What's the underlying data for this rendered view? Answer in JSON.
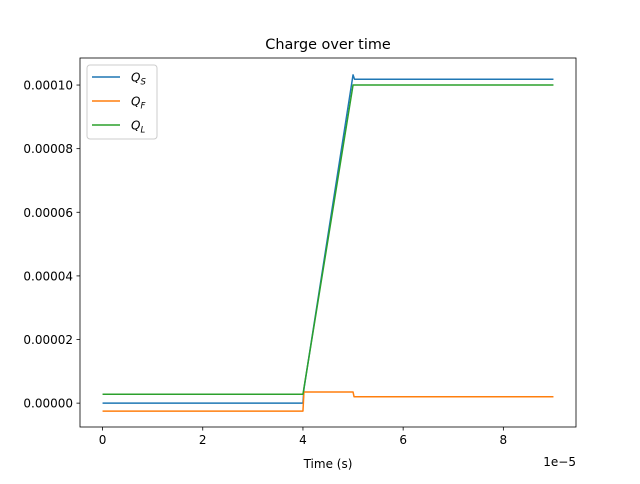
{
  "chart_data": {
    "type": "line",
    "title": "Charge over time",
    "xlabel": "Time (s)",
    "ylabel": "",
    "x_offset_label": "1e−5",
    "xlim": [
      -0.45,
      9.45
    ],
    "ylim": [
      -7.5e-06,
      0.0001085
    ],
    "xticks": [
      0,
      2,
      4,
      6,
      8
    ],
    "xtick_labels": [
      "0",
      "2",
      "4",
      "6",
      "8"
    ],
    "yticks": [
      0,
      2e-05,
      4e-05,
      6e-05,
      8e-05,
      0.0001
    ],
    "ytick_labels": [
      "0.00000",
      "0.00002",
      "0.00004",
      "0.00006",
      "0.00008",
      "0.00010"
    ],
    "grid": false,
    "legend_position": "top-left",
    "series": [
      {
        "name": "Q_S",
        "label_main": "Q",
        "label_sub": "S",
        "color": "#1f77b4",
        "points": [
          [
            0,
            0
          ],
          [
            4,
            0
          ],
          [
            4.02,
            4.5e-06
          ],
          [
            5,
            0.0001032
          ],
          [
            5.03,
            0.0001018
          ],
          [
            9,
            0.0001018
          ]
        ]
      },
      {
        "name": "Q_F",
        "label_main": "Q",
        "label_sub": "F",
        "color": "#ff7f0e",
        "points": [
          [
            0,
            -2.5e-06
          ],
          [
            4,
            -2.5e-06
          ],
          [
            4.02,
            3.5e-06
          ],
          [
            5,
            3.5e-06
          ],
          [
            5.02,
            2e-06
          ],
          [
            9,
            2e-06
          ]
        ]
      },
      {
        "name": "Q_L",
        "label_main": "Q",
        "label_sub": "L",
        "color": "#2ca02c",
        "points": [
          [
            0,
            2.8e-06
          ],
          [
            4,
            2.8e-06
          ],
          [
            5,
            0.0001
          ],
          [
            9,
            0.0001
          ]
        ]
      }
    ]
  }
}
